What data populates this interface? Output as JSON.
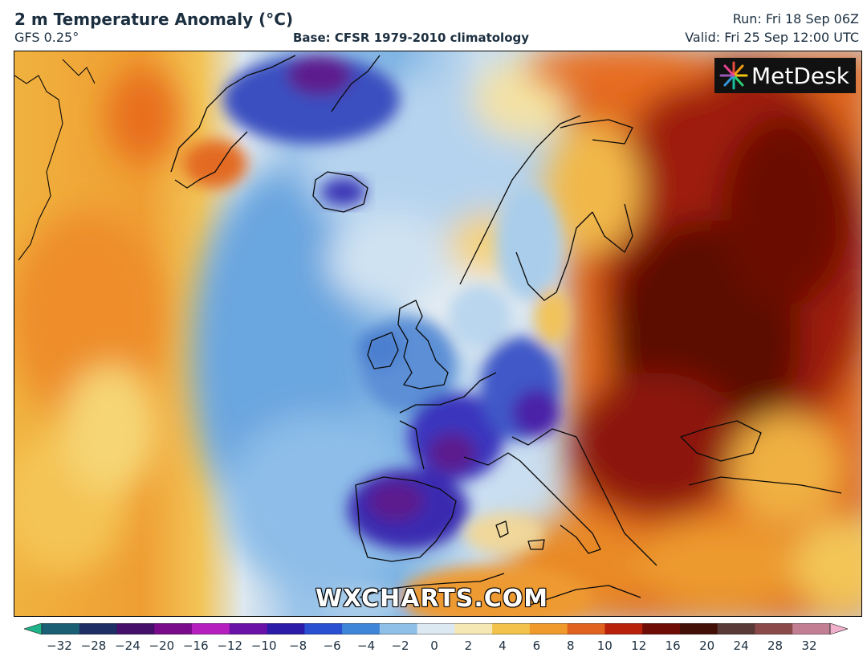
{
  "header": {
    "title": "2 m Temperature Anomaly (°C)",
    "model": "GFS 0.25°",
    "base": "Base: CFSR 1979-2010 climatology",
    "run": "Run: Fri 18 Sep 06Z",
    "valid": "Valid: Fri 25 Sep 12:00 UTC"
  },
  "logo": {
    "text": "MetDesk",
    "icon": "starburst-logo-icon"
  },
  "watermark": "WXCHARTS.COM",
  "colorbar": {
    "ticks": [
      "−32",
      "−28",
      "−24",
      "−20",
      "−16",
      "−12",
      "−10",
      "−8",
      "−6",
      "−4",
      "−2",
      "0",
      "2",
      "4",
      "6",
      "8",
      "10",
      "12",
      "16",
      "20",
      "24",
      "28",
      "32"
    ],
    "colors": [
      "#1fb38a",
      "#1b5f75",
      "#1e2f66",
      "#45106a",
      "#7a0c8c",
      "#b51fbd",
      "#6a12a8",
      "#2c1aa8",
      "#2a4fd0",
      "#3f86d8",
      "#8ec0e8",
      "#dce9f2",
      "#f6e8b4",
      "#f2c24a",
      "#ef9a2a",
      "#e0621e",
      "#b8200c",
      "#6e0c05",
      "#431008",
      "#5a3a36",
      "#8a4a4a",
      "#c27f94",
      "#f0b0cc"
    ]
  },
  "colors": {
    "ocean_warm": "#f1b13b",
    "ocean_cool": "#a9cdeb",
    "cold_anomaly": "#3a3fc2",
    "hot_anomaly": "#8b1a08"
  }
}
